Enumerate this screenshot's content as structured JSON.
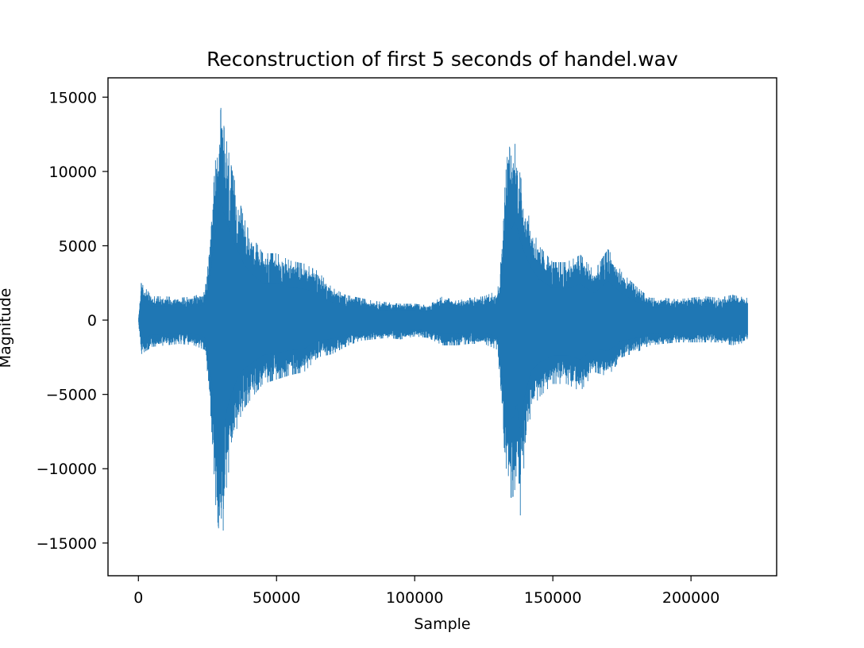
{
  "chart_data": {
    "type": "line",
    "title": "Reconstruction of first 5 seconds of handel.wav",
    "xlabel": "Sample",
    "ylabel": "Magnitude",
    "xlim": [
      -11000,
      231000
    ],
    "ylim": [
      -17200,
      16300
    ],
    "xticks": [
      0,
      50000,
      100000,
      150000,
      200000
    ],
    "xtick_labels": [
      "0",
      "50000",
      "100000",
      "150000",
      "200000"
    ],
    "yticks": [
      15000,
      10000,
      5000,
      0,
      -5000,
      -10000,
      -15000
    ],
    "ytick_labels": [
      "15000",
      "10000",
      "5000",
      "0",
      "−5000",
      "−10000",
      "−15000"
    ],
    "grid": false,
    "series": [
      {
        "color": "#1f77b4",
        "sample_count": 220500,
        "envelope": {
          "x": [
            0,
            1000,
            5000,
            10000,
            15000,
            20000,
            24000,
            26000,
            27000,
            28000,
            29000,
            30000,
            31000,
            32000,
            34000,
            36000,
            38000,
            40000,
            45000,
            50000,
            55000,
            60000,
            65000,
            70000,
            75000,
            80000,
            85000,
            90000,
            95000,
            100000,
            105000,
            110000,
            115000,
            120000,
            125000,
            130000,
            131000,
            132000,
            133000,
            134000,
            135000,
            136000,
            137000,
            138000,
            139000,
            140000,
            142000,
            145000,
            150000,
            155000,
            160000,
            165000,
            170000,
            175000,
            180000,
            185000,
            190000,
            195000,
            200000,
            205000,
            210000,
            215000,
            220000
          ],
          "upper": [
            0,
            2500,
            1600,
            1600,
            1500,
            1600,
            1900,
            5000,
            8500,
            11000,
            13000,
            14500,
            13000,
            12000,
            10000,
            8500,
            7000,
            6000,
            4500,
            4500,
            4000,
            3800,
            3300,
            2200,
            1700,
            1500,
            1300,
            1200,
            1100,
            1100,
            1000,
            1600,
            1300,
            1500,
            1600,
            2000,
            3500,
            7000,
            10000,
            12000,
            11000,
            12000,
            11500,
            10000,
            9000,
            8000,
            6500,
            5000,
            3900,
            3900,
            4400,
            3300,
            4800,
            3200,
            2300,
            1500,
            1500,
            1400,
            1500,
            1600,
            1500,
            1700,
            1500
          ],
          "lower": [
            0,
            -2300,
            -1800,
            -1700,
            -1600,
            -1700,
            -2000,
            -5800,
            -9000,
            -12500,
            -14000,
            -15700,
            -13500,
            -11000,
            -8700,
            -7000,
            -6000,
            -5500,
            -4300,
            -4000,
            -3700,
            -3500,
            -2500,
            -2300,
            -1800,
            -1400,
            -1300,
            -1200,
            -1300,
            -1100,
            -1200,
            -1700,
            -1700,
            -1600,
            -1600,
            -2000,
            -4500,
            -8500,
            -11200,
            -11500,
            -12000,
            -11800,
            -10000,
            -13800,
            -11000,
            -9000,
            -6300,
            -5200,
            -4300,
            -4300,
            -4800,
            -3500,
            -3800,
            -2500,
            -2200,
            -1700,
            -1600,
            -1500,
            -1500,
            -1500,
            -1500,
            -1700,
            -1500
          ]
        }
      }
    ]
  }
}
